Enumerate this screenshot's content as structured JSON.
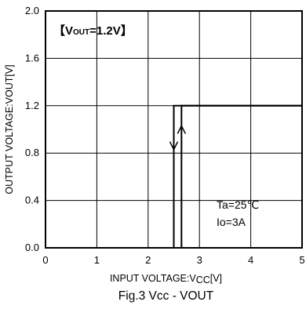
{
  "chart_data": {
    "type": "line",
    "title": "Fig.3 Vcc - VOUT",
    "xlabel": "INPUT VOLTAGE:VCC[V]",
    "ylabel": "OUTPUT VOLTAGE:VOUT[V]",
    "xlim": [
      0,
      5
    ],
    "ylim": [
      0,
      2.0
    ],
    "x_ticks": [
      "0",
      "1",
      "2",
      "3",
      "4",
      "5"
    ],
    "y_ticks": [
      "0.0",
      "0.4",
      "0.8",
      "1.2",
      "1.6",
      "2.0"
    ],
    "grid": true,
    "legend": "none",
    "condition_label": "【VOUT=1.2V】",
    "annotations": [
      "Ta=25℃",
      "Io=3A"
    ],
    "series": [
      {
        "x": [
          0,
          2.5,
          2.5,
          5
        ],
        "y": [
          0,
          0,
          1.2,
          1.2
        ]
      },
      {
        "x": [
          0,
          2.65,
          2.65,
          5
        ],
        "y": [
          0,
          0,
          1.2,
          1.2
        ]
      }
    ],
    "arrows": [
      {
        "x": 2.5,
        "y_from": 1.03,
        "y_to": 0.83,
        "direction": "down"
      },
      {
        "x": 2.65,
        "y_from": 0.83,
        "y_to": 1.03,
        "direction": "up"
      }
    ],
    "line_color": "#000000"
  }
}
